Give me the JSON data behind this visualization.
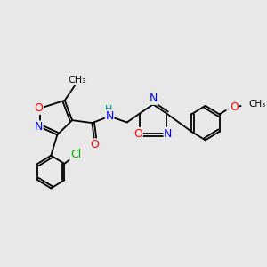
{
  "bg_color": "#e8e8e8",
  "atom_colors": {
    "C": "#000000",
    "N": "#0000ff",
    "O": "#ff0000",
    "Cl": "#00aa00",
    "H": "#008888"
  },
  "bond_color": "#000000",
  "line_width": 1.3
}
